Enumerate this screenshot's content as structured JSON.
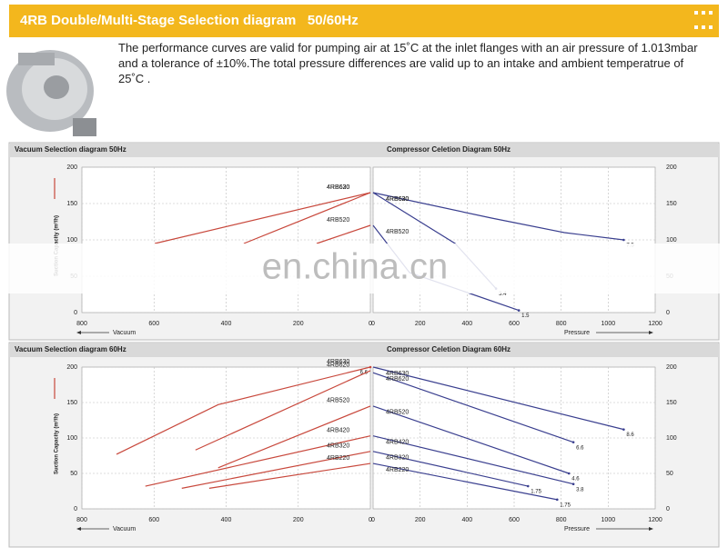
{
  "header": {
    "title": "4RB Double/Multi-Stage Selection diagram   50/60Hz",
    "description": "The performance curves are valid for pumping air at 15˚C at the inlet flanges with an air pressure of 1.013mbar and a tolerance of ±10%.The total pressure differences are valid up to an intake and ambient temperatrue of 25˚C ."
  },
  "watermark": "en.china.cn",
  "chart_data": [
    {
      "type": "line",
      "title": "Vacuum Selection diagram 50Hz",
      "x_label": "Vacuum",
      "y_label": "Suction Capacity (m³/h)",
      "xlim": [
        800,
        0
      ],
      "xticks": [
        800,
        600,
        400,
        200,
        0
      ],
      "ylim": [
        0,
        200
      ],
      "yticks": [
        0,
        50,
        100,
        150,
        200
      ],
      "y_axis_side": "left",
      "grid": true,
      "series": [
        {
          "name": "4RB630",
          "color": "#c8483c",
          "x": [
            598,
            0
          ],
          "values": [
            95,
            165
          ]
        },
        {
          "name": "4RB620",
          "color": "#c8483c",
          "x": [
            351,
            0
          ],
          "values": [
            95,
            165
          ]
        },
        {
          "name": "4RB520",
          "color": "#c8483c",
          "x": [
            149,
            0
          ],
          "values": [
            95,
            120
          ]
        }
      ]
    },
    {
      "type": "line",
      "title": "Compressor Celetion Diagram 50Hz",
      "x_label": "Pressure",
      "xlim": [
        0,
        1200
      ],
      "xticks": [
        0,
        200,
        400,
        600,
        800,
        1000,
        1200
      ],
      "ylim": [
        0,
        200
      ],
      "yticks": [
        0,
        50,
        100,
        150,
        200
      ],
      "y_axis_side": "right",
      "grid": true,
      "series": [
        {
          "name": "4RB630",
          "color": "#3a3f8f",
          "x": [
            0,
            504,
            814,
            1066
          ],
          "values": [
            165,
            130,
            110,
            100
          ],
          "end_label": "7.5"
        },
        {
          "name": "4RB620",
          "color": "#3a3f8f",
          "x": [
            0,
            349,
            523
          ],
          "values": [
            165,
            95,
            33
          ],
          "end_label": "3.4"
        },
        {
          "name": "4RB520",
          "color": "#3a3f8f",
          "x": [
            0,
            155,
            620
          ],
          "values": [
            120,
            55,
            3
          ],
          "end_label": "1.5"
        }
      ]
    },
    {
      "type": "line",
      "title": "Vacuum Selection diagram 60Hz",
      "x_label": "Vacuum",
      "y_label": "Suction Capacity (m³/h)",
      "xlim": [
        800,
        0
      ],
      "xticks": [
        800,
        600,
        400,
        200,
        0
      ],
      "ylim": [
        0,
        200
      ],
      "yticks": [
        0,
        50,
        100,
        150,
        200
      ],
      "y_axis_side": "left",
      "grid": true,
      "series": [
        {
          "name": "4RB630",
          "color": "#c8483c",
          "x": [
            704,
            422,
            0
          ],
          "values": [
            77,
            147,
            200
          ],
          "end_label": "6.6"
        },
        {
          "name": "4RB620",
          "color": "#c8483c",
          "x": [
            485,
            0
          ],
          "values": [
            83,
            195
          ]
        },
        {
          "name": "4RB520",
          "color": "#c8483c",
          "x": [
            422,
            0
          ],
          "values": [
            58,
            145
          ]
        },
        {
          "name": "4RB420",
          "color": "#c8483c",
          "x": [
            624,
            0
          ],
          "values": [
            32,
            103
          ]
        },
        {
          "name": "4RB320",
          "color": "#c8483c",
          "x": [
            523,
            0
          ],
          "values": [
            29,
            81
          ]
        },
        {
          "name": "4RB220",
          "color": "#c8483c",
          "x": [
            447,
            0
          ],
          "values": [
            29,
            64
          ]
        }
      ]
    },
    {
      "type": "line",
      "title": "Compressor Celetion Diagram 60Hz",
      "x_label": "Pressure",
      "xlim": [
        0,
        1200
      ],
      "xticks": [
        0,
        200,
        400,
        600,
        800,
        1000,
        1200
      ],
      "ylim": [
        0,
        200
      ],
      "yticks": [
        0,
        50,
        100,
        150,
        200
      ],
      "y_axis_side": "right",
      "grid": true,
      "series": [
        {
          "name": "4RB630",
          "color": "#3a3f8f",
          "x": [
            0,
            1066
          ],
          "values": [
            200,
            112
          ],
          "end_label": "8.6"
        },
        {
          "name": "4RB620",
          "color": "#3a3f8f",
          "x": [
            0,
            852
          ],
          "values": [
            192,
            94
          ],
          "end_label": "6.6"
        },
        {
          "name": "4RB520",
          "color": "#3a3f8f",
          "x": [
            0,
            833
          ],
          "values": [
            145,
            50
          ],
          "end_label": "4.6"
        },
        {
          "name": "4RB420",
          "color": "#3a3f8f",
          "x": [
            0,
            852
          ],
          "values": [
            103,
            35
          ],
          "end_label": "3.8"
        },
        {
          "name": "4RB320",
          "color": "#3a3f8f",
          "x": [
            0,
            659
          ],
          "values": [
            81,
            32
          ],
          "end_label": "1.75"
        },
        {
          "name": "4RB220",
          "color": "#3a3f8f",
          "x": [
            0,
            783
          ],
          "values": [
            64,
            13
          ],
          "end_label": "1.75"
        }
      ]
    }
  ]
}
